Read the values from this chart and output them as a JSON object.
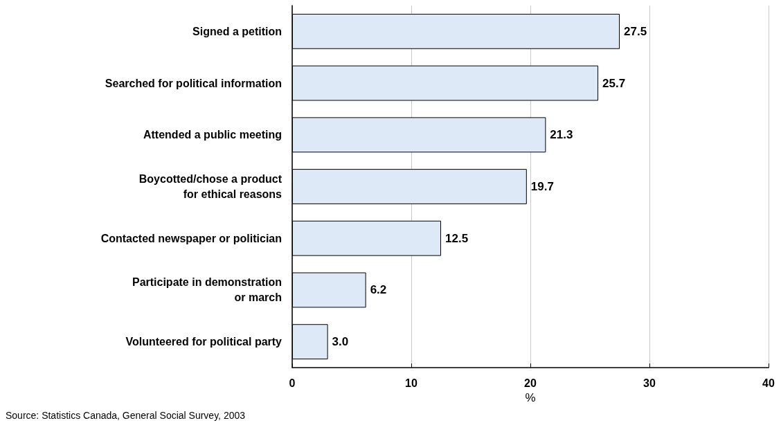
{
  "chart_data": {
    "type": "bar",
    "orientation": "horizontal",
    "xlabel": "%",
    "categories": [
      "Signed a petition",
      "Searched for political information",
      "Attended a public meeting",
      "Boycotted/chose a product\nfor ethical reasons",
      "Contacted newspaper or politician",
      "Participate in demonstration\nor march",
      "Volunteered for political party"
    ],
    "values": [
      27.5,
      25.7,
      21.3,
      19.7,
      12.5,
      6.2,
      3.0
    ],
    "value_labels": [
      "27.5",
      "25.7",
      "21.3",
      "19.7",
      "12.5",
      "6.2",
      "3.0"
    ],
    "color": "#dde9f7",
    "xlim": [
      0,
      40
    ],
    "xticks": [
      0,
      10,
      20,
      30,
      40
    ],
    "grid": "x",
    "annotations": [
      "Source: Statistics Canada, General Social Survey, 2003"
    ]
  }
}
